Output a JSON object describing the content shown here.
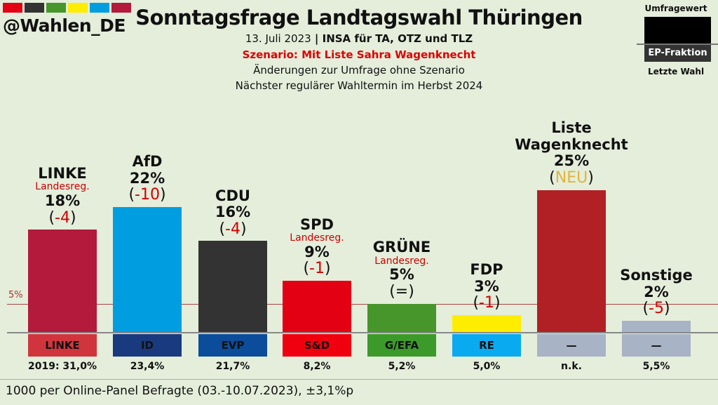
{
  "header": {
    "handle": "@Wahlen_DE",
    "strip_colors": [
      "#e30013",
      "#333333",
      "#46962b",
      "#ffed00",
      "#009ee0",
      "#b31a3c"
    ],
    "title": "Sonntagsfrage Landtagswahl Thüringen",
    "date": "13. Juli 2023",
    "sep": " | ",
    "source": "INSA für TA, OTZ und TLZ",
    "scenario": "Szenario: Mit Liste Sahra Wagenknecht",
    "note1": "Änderungen zur Umfrage ohne Szenario",
    "note2": "Nächster regulärer Wahltermin im Herbst 2024"
  },
  "legend": {
    "top": "Umfragewert",
    "mid": "EP-Fraktion",
    "bottom": "Letzte Wahl"
  },
  "footer": "1000 per Online-Panel Befragte (03.-10.07.2023), ±3,1%p",
  "chart_data": {
    "type": "bar",
    "title": "Sonntagsfrage Landtagswahl Thüringen",
    "ylim": [
      0,
      30
    ],
    "threshold": {
      "value": 5,
      "label": "5%"
    },
    "categories": [
      "LINKE",
      "AfD",
      "CDU",
      "SPD",
      "GRÜNE",
      "FDP",
      "Liste Wagenknecht",
      "Sonstige"
    ],
    "values": [
      18,
      22,
      16,
      9,
      5,
      3,
      25,
      2
    ],
    "bars": [
      {
        "name": "LINKE",
        "note": "Landesreg.",
        "value": 18,
        "label": "18%",
        "change": "-4",
        "color": "#b31a3c",
        "faction": "LINKE",
        "faction_color": "#d0353e",
        "last": "2019: 31,0%"
      },
      {
        "name": "AfD",
        "note": "",
        "value": 22,
        "label": "22%",
        "change": "-10",
        "color": "#009ee0",
        "faction": "ID",
        "faction_color": "#1a3a7f",
        "last": "23,4%"
      },
      {
        "name": "CDU",
        "note": "",
        "value": 16,
        "label": "16%",
        "change": "-4",
        "color": "#333333",
        "faction": "EVP",
        "faction_color": "#0b4c9b",
        "last": "21,7%"
      },
      {
        "name": "SPD",
        "note": "Landesreg.",
        "value": 9,
        "label": "9%",
        "change": "-1",
        "color": "#e30013",
        "faction": "S&D",
        "faction_color": "#f0000f",
        "last": "8,2%"
      },
      {
        "name": "GRÜNE",
        "note": "Landesreg.",
        "value": 5,
        "label": "5%",
        "change": "=",
        "color": "#46962b",
        "faction": "G/EFA",
        "faction_color": "#3c9a2a",
        "last": "5,2%"
      },
      {
        "name": "FDP",
        "note": "",
        "value": 3,
        "label": "3%",
        "change": "-1",
        "color": "#ffed00",
        "faction": "RE",
        "faction_color": "#0aaaf0",
        "last": "5,0%"
      },
      {
        "name": "Liste Wagenknecht",
        "note": "",
        "value": 25,
        "label": "25%",
        "change": "NEU",
        "color": "#b02024",
        "faction": "—",
        "faction_color": "#a9b3c6",
        "last": "n.k."
      },
      {
        "name": "Sonstige",
        "note": "",
        "value": 2,
        "label": "2%",
        "change": "-5",
        "color": "#a9b3c6",
        "faction": "—",
        "faction_color": "#a9b3c6",
        "last": "5,5%"
      }
    ],
    "change_colors": {
      "negative": "#d40000",
      "new": "#e2b53a",
      "neutral": "#111111"
    }
  }
}
